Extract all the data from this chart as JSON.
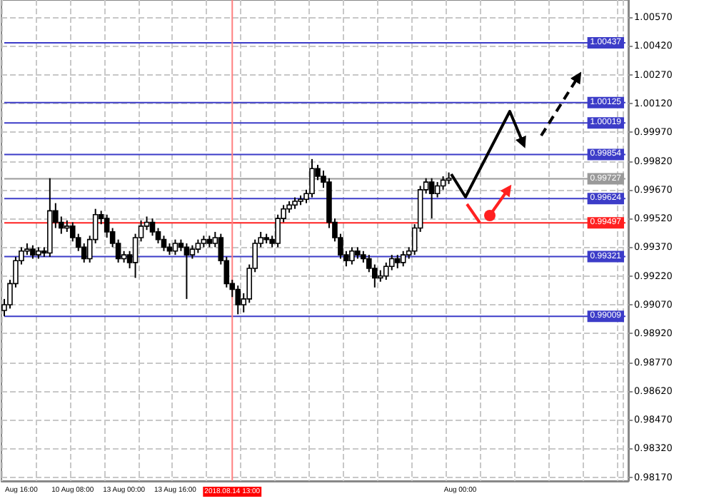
{
  "chart_data": {
    "type": "candlestick",
    "categories": [
      null,
      null,
      null,
      "Aug 16:00",
      null,
      null,
      null,
      null,
      null,
      null,
      null,
      null,
      "10 Aug 08:00",
      null,
      null,
      null,
      null,
      null,
      null,
      null,
      null,
      "13 Aug 00:00",
      null,
      null,
      null,
      null,
      null,
      null,
      null,
      null,
      "13 Aug 16:00",
      null,
      null,
      null,
      null,
      null,
      null,
      null,
      null,
      null,
      "2018.08.14 13:00",
      null,
      null,
      null,
      null,
      null,
      null,
      null,
      null,
      null,
      null,
      null,
      null,
      null,
      null,
      null,
      null,
      null,
      null,
      null,
      null,
      null,
      null,
      null,
      null,
      null,
      null,
      null,
      null,
      null,
      null,
      null,
      null,
      null,
      null,
      null,
      null,
      null,
      null,
      null,
      "Aug 00:00",
      null,
      null,
      null,
      null,
      null,
      null,
      null,
      null,
      null,
      null,
      null,
      null,
      null,
      null,
      null,
      null,
      null,
      null,
      null,
      null,
      null,
      null,
      null,
      null,
      null,
      null,
      null,
      null,
      null
    ],
    "ohlc": [
      [
        0.9904,
        0.991,
        0.9901,
        0.9907
      ],
      [
        0.9907,
        0.992,
        0.9905,
        0.9918
      ],
      [
        0.9918,
        0.9932,
        0.9916,
        0.993
      ],
      [
        0.993,
        0.9937,
        0.9928,
        0.9935
      ],
      [
        0.9935,
        0.9939,
        0.9933,
        0.9936
      ],
      [
        0.9936,
        0.9938,
        0.9931,
        0.9933
      ],
      [
        0.9933,
        0.9937,
        0.9931,
        0.9935
      ],
      [
        0.9935,
        0.9937,
        0.9932,
        0.9934
      ],
      [
        0.9934,
        0.9973,
        0.9932,
        0.9956
      ],
      [
        0.9956,
        0.996,
        0.9947,
        0.995
      ],
      [
        0.995,
        0.9953,
        0.9944,
        0.9947
      ],
      [
        0.9947,
        0.9951,
        0.9945,
        0.9948
      ],
      [
        0.9948,
        0.995,
        0.994,
        0.9942
      ],
      [
        0.9942,
        0.9944,
        0.9935,
        0.9937
      ],
      [
        0.9937,
        0.9939,
        0.9929,
        0.9931
      ],
      [
        0.9931,
        0.9943,
        0.9929,
        0.9941
      ],
      [
        0.9941,
        0.9957,
        0.9939,
        0.9954
      ],
      [
        0.9954,
        0.9956,
        0.9949,
        0.9952
      ],
      [
        0.9952,
        0.9954,
        0.9942,
        0.9945
      ],
      [
        0.9945,
        0.9947,
        0.9937,
        0.9939
      ],
      [
        0.9939,
        0.9941,
        0.9929,
        0.9931
      ],
      [
        0.9931,
        0.9935,
        0.9929,
        0.9933
      ],
      [
        0.9933,
        0.9935,
        0.9926,
        0.9929
      ],
      [
        0.9929,
        0.9944,
        0.9921,
        0.9942
      ],
      [
        0.9942,
        0.9951,
        0.994,
        0.9948
      ],
      [
        0.9948,
        0.9953,
        0.9946,
        0.995
      ],
      [
        0.995,
        0.9952,
        0.9943,
        0.9945
      ],
      [
        0.9945,
        0.9947,
        0.9939,
        0.9941
      ],
      [
        0.9941,
        0.9943,
        0.9935,
        0.9937
      ],
      [
        0.9937,
        0.9939,
        0.9933,
        0.9935
      ],
      [
        0.9935,
        0.9941,
        0.9933,
        0.9939
      ],
      [
        0.9939,
        0.9941,
        0.9935,
        0.9937
      ],
      [
        0.9937,
        0.9939,
        0.991,
        0.9933
      ],
      [
        0.9933,
        0.9938,
        0.9931,
        0.9936
      ],
      [
        0.9936,
        0.9941,
        0.9934,
        0.9939
      ],
      [
        0.9939,
        0.9943,
        0.9937,
        0.9941
      ],
      [
        0.9941,
        0.9943,
        0.9937,
        0.9939
      ],
      [
        0.9939,
        0.9945,
        0.9937,
        0.9942
      ],
      [
        0.9942,
        0.9944,
        0.9928,
        0.993
      ],
      [
        0.993,
        0.9932,
        0.9916,
        0.9918
      ],
      [
        0.9918,
        0.992,
        0.9911,
        0.9915
      ],
      [
        0.9915,
        0.9917,
        0.9902,
        0.9907
      ],
      [
        0.9907,
        0.9913,
        0.9903,
        0.991
      ],
      [
        0.991,
        0.9928,
        0.9908,
        0.9926
      ],
      [
        0.9926,
        0.9941,
        0.9924,
        0.9939
      ],
      [
        0.9939,
        0.9945,
        0.9937,
        0.9942
      ],
      [
        0.9942,
        0.9944,
        0.9939,
        0.9941
      ],
      [
        0.9941,
        0.9943,
        0.9937,
        0.9939
      ],
      [
        0.9939,
        0.9954,
        0.9937,
        0.9952
      ],
      [
        0.9952,
        0.9959,
        0.995,
        0.9957
      ],
      [
        0.9957,
        0.9961,
        0.9955,
        0.9959
      ],
      [
        0.9959,
        0.9963,
        0.9957,
        0.9961
      ],
      [
        0.9961,
        0.9964,
        0.9959,
        0.9962
      ],
      [
        0.9962,
        0.9967,
        0.996,
        0.9965
      ],
      [
        0.9965,
        0.9983,
        0.9963,
        0.9978
      ],
      [
        0.9978,
        0.998,
        0.9972,
        0.9974
      ],
      [
        0.9974,
        0.9977,
        0.9968,
        0.9971
      ],
      [
        0.9971,
        0.9973,
        0.9947,
        0.995
      ],
      [
        0.995,
        0.9952,
        0.994,
        0.9942
      ],
      [
        0.9942,
        0.9944,
        0.9931,
        0.9933
      ],
      [
        0.9933,
        0.9935,
        0.9927,
        0.993
      ],
      [
        0.993,
        0.9937,
        0.9928,
        0.9935
      ],
      [
        0.9935,
        0.9937,
        0.9931,
        0.9933
      ],
      [
        0.9933,
        0.9935,
        0.9929,
        0.9931
      ],
      [
        0.9931,
        0.9933,
        0.9924,
        0.9926
      ],
      [
        0.9926,
        0.9928,
        0.9916,
        0.9921
      ],
      [
        0.9921,
        0.9925,
        0.9919,
        0.9922
      ],
      [
        0.9922,
        0.9929,
        0.992,
        0.9927
      ],
      [
        0.9927,
        0.9933,
        0.9925,
        0.9931
      ],
      [
        0.9931,
        0.9933,
        0.9926,
        0.9929
      ],
      [
        0.9929,
        0.9935,
        0.9927,
        0.9933
      ],
      [
        0.9933,
        0.9937,
        0.9931,
        0.9935
      ],
      [
        0.9935,
        0.9949,
        0.9933,
        0.9947
      ],
      [
        0.9947,
        0.9969,
        0.9945,
        0.9967
      ],
      [
        0.9967,
        0.9973,
        0.9965,
        0.9971
      ],
      [
        0.9971,
        0.9973,
        0.9952,
        0.9965
      ],
      [
        0.9965,
        0.9971,
        0.9963,
        0.9969
      ],
      [
        0.9969,
        0.9974,
        0.9967,
        0.9972
      ],
      [
        0.9972,
        0.9976,
        0.997,
        0.9973
      ],
      null,
      null,
      null,
      null,
      null,
      null,
      null,
      null,
      null,
      null,
      null,
      null,
      null,
      null,
      null,
      null,
      null,
      null,
      null,
      null,
      null,
      null,
      null,
      null,
      null,
      null,
      null,
      null,
      null,
      null,
      null
    ],
    "ylim": [
      0.9815,
      1.0066
    ],
    "yticks": [
      {
        "value": 0.9817,
        "label": "0.98170"
      },
      {
        "value": 0.9832,
        "label": "0.98320"
      },
      {
        "value": 0.9847,
        "label": "0.98470"
      },
      {
        "value": 0.9862,
        "label": "0.98620"
      },
      {
        "value": 0.9877,
        "label": "0.98770"
      },
      {
        "value": 0.9892,
        "label": "0.98920"
      },
      {
        "value": 0.9907,
        "label": "0.99070"
      },
      {
        "value": 0.9922,
        "label": "0.99220"
      },
      {
        "value": 0.9937,
        "label": "0.99370"
      },
      {
        "value": 0.9952,
        "label": "0.99520"
      },
      {
        "value": 0.9967,
        "label": "0.99670"
      },
      {
        "value": 0.9982,
        "label": "0.99820"
      },
      {
        "value": 0.9997,
        "label": "0.99970"
      },
      {
        "value": 1.0012,
        "label": "1.00120"
      },
      {
        "value": 1.0027,
        "label": "1.00270"
      },
      {
        "value": 1.0042,
        "label": "1.00420"
      },
      {
        "value": 1.0057,
        "label": "1.00570"
      }
    ],
    "ref_lines": [
      {
        "axis": "y",
        "value": 1.00437,
        "label": "1.00437",
        "color": "#3c3cc8"
      },
      {
        "axis": "y",
        "value": 1.00125,
        "label": "1.00125",
        "color": "#3c3cc8"
      },
      {
        "axis": "y",
        "value": 1.00019,
        "label": "1.00019",
        "color": "#3c3cc8"
      },
      {
        "axis": "y",
        "value": 0.99854,
        "label": "0.99854",
        "color": "#3c3cc8"
      },
      {
        "axis": "y",
        "value": 0.99727,
        "label": "0.99727",
        "color": "#9a9a9a"
      },
      {
        "axis": "y",
        "value": 0.99624,
        "label": "0.99624",
        "color": "#3c3cc8"
      },
      {
        "axis": "y",
        "value": 0.99497,
        "label": "0.99497",
        "color": "#ff2020"
      },
      {
        "axis": "y",
        "value": 0.99321,
        "label": "0.99321",
        "color": "#3c3cc8"
      },
      {
        "axis": "y",
        "value": 0.99009,
        "label": "0.99009",
        "color": "#3c3cc8"
      },
      {
        "axis": "x",
        "value": "2018.08.14 13:00",
        "color": "#ff8080"
      }
    ],
    "grid": true
  }
}
